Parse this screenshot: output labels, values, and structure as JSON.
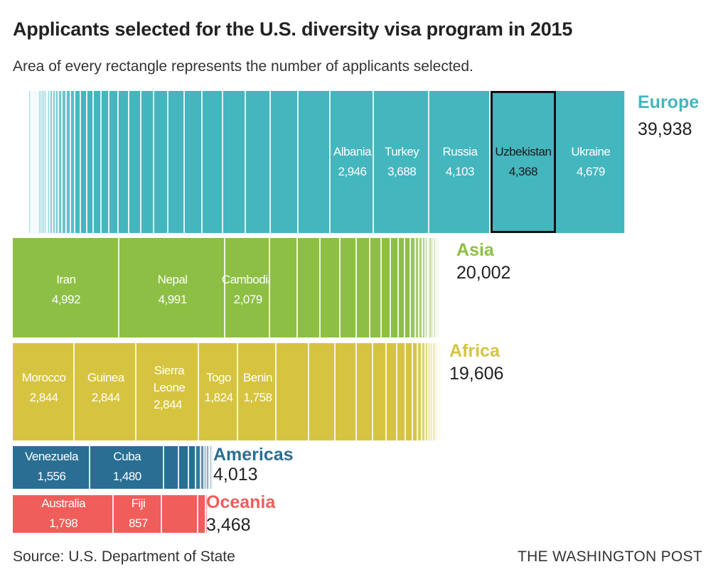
{
  "title": "Applicants selected for the U.S. diversity visa program in 2015",
  "subtitle": "Area of every rectangle represents the number of applicants selected.",
  "source": "Source: U.S. Department of State",
  "credit": "THE WASHINGTON POST",
  "chart_data": {
    "type": "treemap-bar",
    "regions": [
      {
        "name": "Europe",
        "total_label": "39,938",
        "total": 39938,
        "color": "#44b6be",
        "order": "ascending",
        "countries": [
          {
            "name": "Albania",
            "label": "2,946",
            "value": 2946
          },
          {
            "name": "Turkey",
            "label": "3,688",
            "value": 3688
          },
          {
            "name": "Russia",
            "label": "4,103",
            "value": 4103
          },
          {
            "name": "Uzbekistan",
            "label": "4,368",
            "value": 4368,
            "highlight": true
          },
          {
            "name": "Ukraine",
            "label": "4,679",
            "value": 4679
          }
        ]
      },
      {
        "name": "Asia",
        "total_label": "20,002",
        "total": 20002,
        "color": "#8dbf45",
        "order": "descending",
        "countries": [
          {
            "name": "Iran",
            "label": "4,992",
            "value": 4992
          },
          {
            "name": "Nepal",
            "label": "4,991",
            "value": 4991
          },
          {
            "name": "Cambodia",
            "label": "2,079",
            "value": 2079
          }
        ]
      },
      {
        "name": "Africa",
        "total_label": "19,606",
        "total": 19606,
        "color": "#d6c440",
        "order": "descending",
        "countries": [
          {
            "name": "Morocco",
            "label": "2,844",
            "value": 2844
          },
          {
            "name": "Guinea",
            "label": "2,844",
            "value": 2844
          },
          {
            "name": "Sierra Leone",
            "label": "2,844",
            "value": 2844
          },
          {
            "name": "Togo",
            "label": "1,824",
            "value": 1824
          },
          {
            "name": "Benin",
            "label": "1,758",
            "value": 1758
          }
        ]
      },
      {
        "name": "Americas",
        "total_label": "4,013",
        "total": 4013,
        "color": "#2a6e93",
        "order": "descending",
        "countries": [
          {
            "name": "Venezuela",
            "label": "1,556",
            "value": 1556
          },
          {
            "name": "Cuba",
            "label": "1,480",
            "value": 1480
          }
        ]
      },
      {
        "name": "Oceania",
        "total_label": "3,468",
        "total": 3468,
        "color": "#ef5e5a",
        "order": "descending",
        "countries": [
          {
            "name": "Australia",
            "label": "1,798",
            "value": 1798
          },
          {
            "name": "Fiji",
            "label": "857",
            "value": 857
          }
        ]
      }
    ]
  }
}
